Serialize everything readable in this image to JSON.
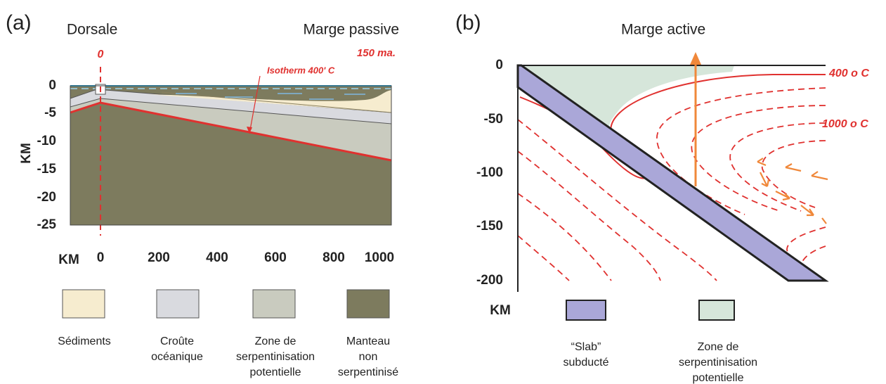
{
  "panel_a": {
    "label": "(a)",
    "left_title": "Dorsale",
    "right_title": "Marge passive",
    "ridge_marker": "0",
    "age_label": "150 ma.",
    "isotherm_label": "Isotherm 400' C",
    "y_axis_label": "KM",
    "y_ticks": [
      "0",
      "-5",
      "-10",
      "-15",
      "-20",
      "-25"
    ],
    "x_axis_unit": "KM",
    "x_ticks": [
      "0",
      "200",
      "400",
      "600",
      "800",
      "1000"
    ],
    "legend": [
      {
        "lines": [
          "Sédiments"
        ]
      },
      {
        "lines": [
          "Croûte",
          "océanique"
        ]
      },
      {
        "lines": [
          "Zone de",
          "serpentinisation",
          "potentielle"
        ]
      },
      {
        "lines": [
          "Manteau",
          "non",
          "serpentinisé"
        ]
      }
    ]
  },
  "panel_b": {
    "label": "(b)",
    "title": "Marge active",
    "isotherm_labels": [
      "400 o C",
      "1000 o C"
    ],
    "y_ticks": [
      "0",
      "-50",
      "-100",
      "-150",
      "-200"
    ],
    "axis_unit": "KM",
    "legend": [
      {
        "lines": [
          "“Slab”",
          "subducté"
        ]
      },
      {
        "lines": [
          "Zone de",
          "serpentinisation",
          "potentielle"
        ]
      }
    ]
  }
}
